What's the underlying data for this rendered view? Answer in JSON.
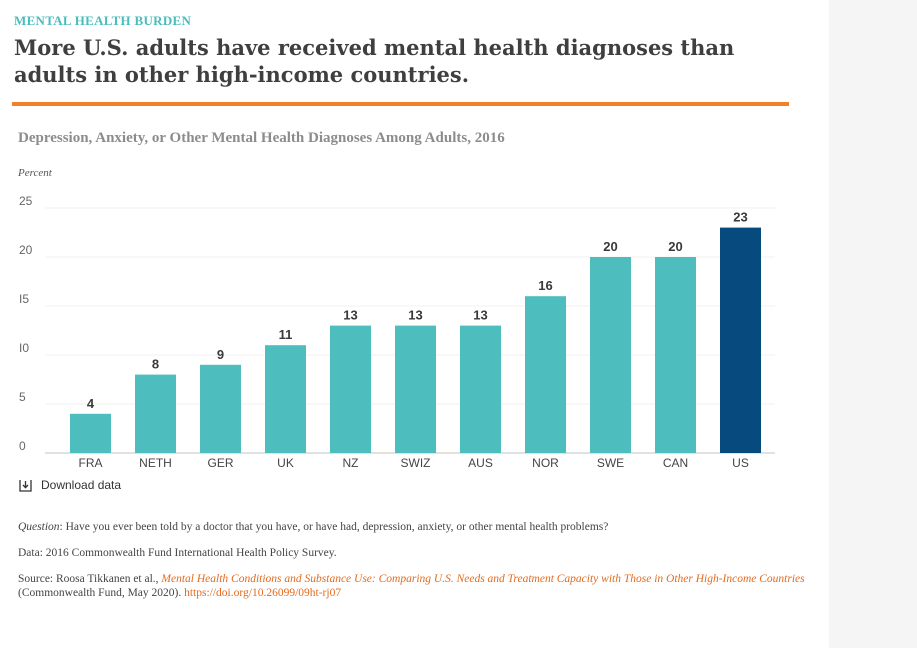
{
  "header": {
    "kicker": "MENTAL HEALTH BURDEN",
    "headline": "More U.S. adults have received mental health diagnoses than adults in other high-income countries."
  },
  "colors": {
    "kicker": "#4bbcbc",
    "rule": "#f0822a",
    "bar_default": "#4dbdbd",
    "bar_highlight": "#064a7e",
    "link": "#e36b1f"
  },
  "chart_data": {
    "type": "bar",
    "title": "Depression, Anxiety, or Other Mental Health Diagnoses Among Adults, 2016",
    "ylabel": "Percent",
    "xlabel": "",
    "ylim": [
      0,
      25
    ],
    "yticks": [
      "0",
      "5",
      "I0",
      "I5",
      "20",
      "25"
    ],
    "categories": [
      "FRA",
      "NETH",
      "GER",
      "UK",
      "NZ",
      "SWIZ",
      "AUS",
      "NOR",
      "SWE",
      "CAN",
      "US"
    ],
    "values": [
      4,
      8,
      9,
      11,
      13,
      13,
      13,
      16,
      20,
      20,
      23
    ],
    "highlight": "US",
    "grid": true,
    "legend": "none"
  },
  "download": {
    "label": "Download data",
    "icon": "download-icon"
  },
  "notes": {
    "question_label": "Question",
    "question_text": ": Have you ever been told by a doctor that you have, or have had, depression, anxiety, or other mental health problems?",
    "data_text": "Data: 2016 Commonwealth Fund International Health Policy Survey.",
    "source_prefix": "Source: Roosa Tikkanen et al., ",
    "source_title": "Mental Health Conditions and Substance Use: Comparing U.S. Needs and Treatment Capacity with Those in Other High-Income Countries",
    "source_suffix": " (Commonwealth Fund, May 2020). ",
    "source_doi": "https://doi.org/10.26099/09ht-rj07"
  }
}
